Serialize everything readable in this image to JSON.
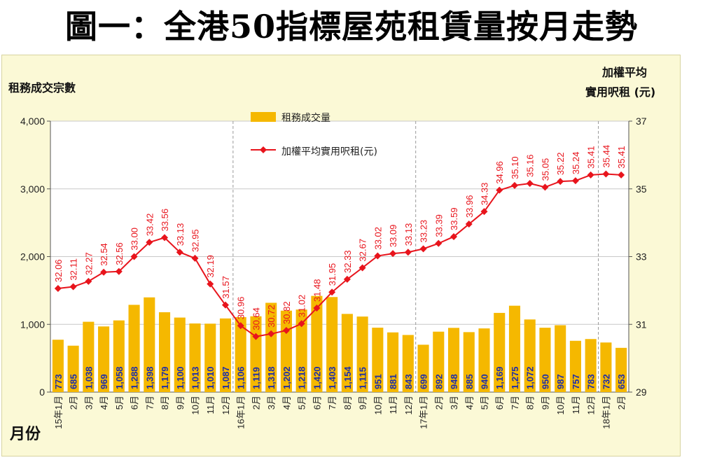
{
  "title": "圖一：全港50指標屋苑租賃量按月走勢",
  "chart_data": {
    "type": "bar+line",
    "left_axis_label": "租務成交宗數",
    "right_axis_label_line1": "加權平均",
    "right_axis_label_line2": "實用呎租 (元)",
    "xlabel": "月份",
    "left_ylim": [
      0,
      4000
    ],
    "left_ticks": [
      "0",
      "1,000",
      "2,000",
      "3,000",
      "4,000"
    ],
    "right_ylim": [
      29,
      37
    ],
    "right_ticks": [
      "29",
      "31",
      "33",
      "35",
      "37"
    ],
    "categories": [
      "15年1月",
      "2月",
      "3月",
      "4月",
      "5月",
      "6月",
      "7月",
      "8月",
      "9月",
      "10月",
      "11月",
      "12月",
      "16年1月",
      "2月",
      "3月",
      "4月",
      "5月",
      "6月",
      "7月",
      "8月",
      "9月",
      "10月",
      "11月",
      "12月",
      "17年1月",
      "2月",
      "3月",
      "4月",
      "5月",
      "6月",
      "7月",
      "8月",
      "9月",
      "10月",
      "11月",
      "12月",
      "18年1月",
      "2月"
    ],
    "bar_labels": [
      "773",
      "685",
      "1,038",
      "969",
      "1,058",
      "1,288",
      "1,398",
      "1,179",
      "1,100",
      "1,013",
      "1,010",
      "1,087",
      "1,106",
      "1,119",
      "1,318",
      "1,202",
      "1,218",
      "1,420",
      "1,403",
      "1,154",
      "1,115",
      "951",
      "881",
      "843",
      "699",
      "892",
      "948",
      "885",
      "940",
      "1,169",
      "1,275",
      "1,072",
      "950",
      "987",
      "757",
      "783",
      "732",
      "653"
    ],
    "bar_values": [
      773,
      685,
      1038,
      969,
      1058,
      1288,
      1398,
      1179,
      1100,
      1013,
      1010,
      1087,
      1106,
      1119,
      1318,
      1202,
      1218,
      1420,
      1403,
      1154,
      1115,
      951,
      881,
      843,
      699,
      892,
      948,
      885,
      940,
      1169,
      1275,
      1072,
      950,
      987,
      757,
      783,
      732,
      653
    ],
    "line_labels": [
      "32.06",
      "32.11",
      "32.27",
      "32.54",
      "32.56",
      "33.00",
      "33.42",
      "33.56",
      "33.13",
      "32.95",
      "32.19",
      "31.57",
      "30.96",
      "30.64",
      "30.72",
      "30.82",
      "31.02",
      "31.48",
      "31.95",
      "32.33",
      "32.67",
      "33.02",
      "33.09",
      "33.13",
      "33.23",
      "33.39",
      "33.59",
      "33.96",
      "34.33",
      "34.96",
      "35.10",
      "35.16",
      "35.05",
      "35.22",
      "35.24",
      "35.41",
      "35.44",
      "35.41"
    ],
    "line_values": [
      32.06,
      32.11,
      32.27,
      32.54,
      32.56,
      33.0,
      33.42,
      33.56,
      33.13,
      32.95,
      32.19,
      31.57,
      30.96,
      30.64,
      30.72,
      30.82,
      31.02,
      31.48,
      31.95,
      32.33,
      32.67,
      33.02,
      33.09,
      33.13,
      33.23,
      33.39,
      33.59,
      33.96,
      34.33,
      34.96,
      35.1,
      35.16,
      35.05,
      35.22,
      35.24,
      35.41,
      35.44,
      35.41
    ],
    "series": [
      {
        "name": "租務成交量",
        "type": "bar",
        "color": "#f5b800"
      },
      {
        "name": "加權平均實用呎租(元)",
        "type": "line",
        "color": "#e8141c"
      }
    ],
    "bar_label_color": "#1f2fa8",
    "line_label_color": "#e8141c"
  }
}
